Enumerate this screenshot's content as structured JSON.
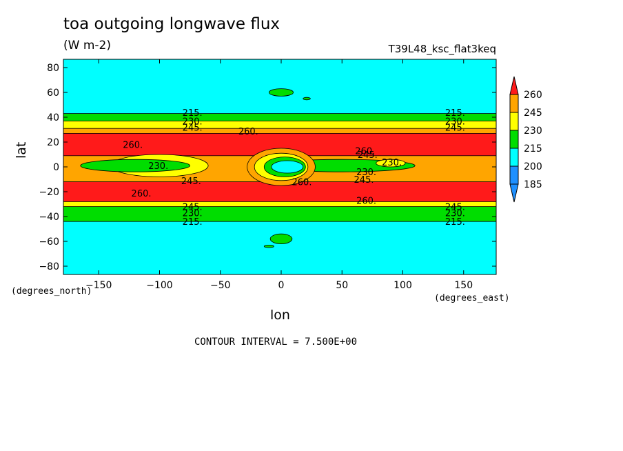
{
  "chart_data": {
    "type": "heatmap",
    "title": "toa outgoing longwave flux",
    "units": "(W m-2)",
    "run_id": "T39L48_ksc_flat3keq",
    "xlabel": "lon",
    "ylabel": "lat",
    "x_units": "(degrees_east)",
    "y_units": "(degrees_north)",
    "xlim": [
      -180,
      180
    ],
    "ylim": [
      -90,
      90
    ],
    "x_ticks": [
      "-150",
      "-100",
      "-50",
      "0",
      "50",
      "100",
      "150"
    ],
    "y_ticks": [
      "80",
      "60",
      "40",
      "20",
      "0",
      "-20",
      "-40",
      "-60",
      "-80"
    ],
    "contour_interval_label": "CONTOUR INTERVAL = 7.500E+00",
    "colorbar": {
      "levels": [
        "260",
        "245",
        "230",
        "215",
        "200",
        "185"
      ],
      "colors": [
        "#ff1a1a",
        "#ffa500",
        "#ffff00",
        "#00dd00",
        "#00ffff",
        "#1e90ff"
      ]
    },
    "contour_labels": [
      {
        "text": "215.",
        "lon": -73,
        "lat": 44
      },
      {
        "text": "230.",
        "lon": -73,
        "lat": 37
      },
      {
        "text": "245.",
        "lon": -73,
        "lat": 32
      },
      {
        "text": "215.",
        "lon": 143,
        "lat": 44
      },
      {
        "text": "230.",
        "lon": 143,
        "lat": 37
      },
      {
        "text": "245.",
        "lon": 143,
        "lat": 32
      },
      {
        "text": "260.",
        "lon": -27,
        "lat": 29
      },
      {
        "text": "260.",
        "lon": -122,
        "lat": 18
      },
      {
        "text": "260.",
        "lon": 69,
        "lat": 13
      },
      {
        "text": "245.",
        "lon": 71,
        "lat": 10
      },
      {
        "text": "230.",
        "lon": -101,
        "lat": 1
      },
      {
        "text": "230.",
        "lon": 91,
        "lat": 4
      },
      {
        "text": "230.",
        "lon": 70,
        "lat": -4
      },
      {
        "text": "245.",
        "lon": -74,
        "lat": -11
      },
      {
        "text": "245.",
        "lon": 68,
        "lat": -10
      },
      {
        "text": "260.",
        "lon": 17,
        "lat": -12
      },
      {
        "text": "260.",
        "lon": -115,
        "lat": -21
      },
      {
        "text": "260.",
        "lon": 70,
        "lat": -27
      },
      {
        "text": "245.",
        "lon": -73,
        "lat": -32
      },
      {
        "text": "230.",
        "lon": -73,
        "lat": -37
      },
      {
        "text": "215.",
        "lon": -73,
        "lat": -44
      },
      {
        "text": "245.",
        "lon": 143,
        "lat": -32
      },
      {
        "text": "230.",
        "lon": 143,
        "lat": -37
      },
      {
        "text": "215.",
        "lon": 143,
        "lat": -44
      }
    ],
    "bands": [
      {
        "level": 215,
        "lat_min": 32,
        "lat_max": 43
      },
      {
        "level": 230,
        "lat_min": 28,
        "lat_max": 37
      },
      {
        "level": 245,
        "lat_min": -30,
        "lat_max": 31
      },
      {
        "level": 260,
        "lat_min": 9,
        "lat_max": 27
      },
      {
        "level": 260,
        "lat_min": -29,
        "lat_max": -12
      },
      {
        "level": 230,
        "lat_min": -37,
        "lat_max": -28
      },
      {
        "level": 215,
        "lat_min": -44,
        "lat_max": -32
      }
    ],
    "features": [
      {
        "level": 230,
        "lon": -100,
        "lat": 1,
        "dlon": 40,
        "dlat": 9
      },
      {
        "level": 215,
        "lon": -120,
        "lat": 1,
        "dlon": 45,
        "dlat": 5
      },
      {
        "level": 215,
        "lon": 50,
        "lat": 1,
        "dlon": 60,
        "dlat": 5
      },
      {
        "level": 230,
        "lon": 90,
        "lat": 3,
        "dlon": 12,
        "dlat": 3
      },
      {
        "level": 245,
        "lon": 0,
        "lat": 0,
        "dlon": 28,
        "dlat": 15
      },
      {
        "level": 230,
        "lon": 0,
        "lat": 0,
        "dlon": 22,
        "dlat": 11
      },
      {
        "level": 215,
        "lon": 3,
        "lat": 0,
        "dlon": 17,
        "dlat": 8
      },
      {
        "level": 200,
        "lon": 5,
        "lat": 0,
        "dlon": 13,
        "dlat": 5
      },
      {
        "level": 215,
        "lon": 0,
        "lat": 60,
        "dlon": 10,
        "dlat": 3
      },
      {
        "level": 215,
        "lon": 21,
        "lat": 55,
        "dlon": 3,
        "dlat": 1
      },
      {
        "level": 215,
        "lon": 0,
        "lat": -58,
        "dlon": 9,
        "dlat": 4
      },
      {
        "level": 215,
        "lon": -10,
        "lat": -64,
        "dlon": 4,
        "dlat": 1
      }
    ]
  }
}
